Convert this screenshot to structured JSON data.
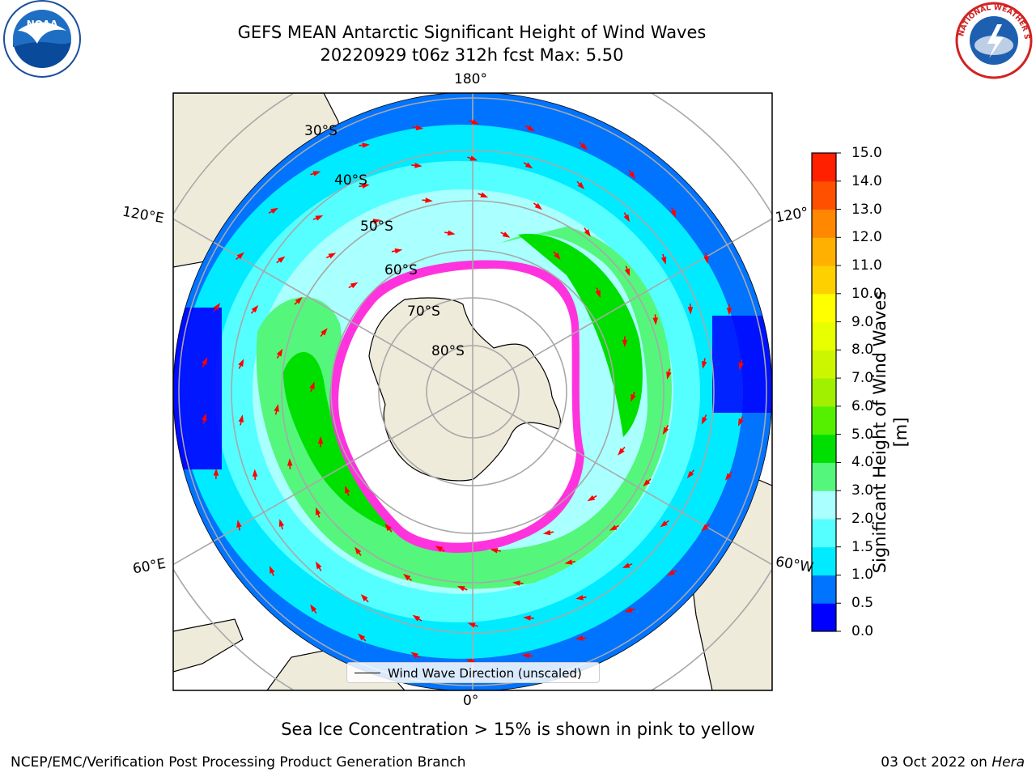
{
  "title": {
    "line1": "GEFS MEAN Antarctic Significant Height of Wind Waves",
    "line2": "20220929 t06z 312h fcst   Max: 5.50"
  },
  "logos": {
    "left": "NOAA",
    "right": "NATIONAL WEATHER SERVICE"
  },
  "map": {
    "projection": "south-polar-stereographic",
    "lat_labels": [
      "30°S",
      "40°S",
      "50°S",
      "60°S",
      "70°S",
      "80°S"
    ],
    "lon_labels": {
      "top": "180°",
      "bottom": "0°",
      "upper_left": "120°E",
      "lower_left": "60°E",
      "upper_right": "120°",
      "lower_right": "60°W"
    },
    "legend": "Wind Wave Direction (unscaled)",
    "arrow_color": "#ff0000",
    "land_color": "#efebdb"
  },
  "colorbar": {
    "label": "Significant Height of Wind Waves [m]",
    "ticks": [
      "0.0",
      "0.5",
      "1.0",
      "1.5",
      "2.0",
      "3.0",
      "4.0",
      "5.0",
      "6.0",
      "7.0",
      "8.0",
      "9.0",
      "10.0",
      "11.0",
      "12.0",
      "13.0",
      "14.0",
      "15.0"
    ],
    "colors": [
      "#0000ff",
      "#0073ff",
      "#00ebff",
      "#55ffff",
      "#aaffff",
      "#55f67c",
      "#00e000",
      "#55f000",
      "#a0f000",
      "#ccf600",
      "#e8ff00",
      "#ffff00",
      "#ffd000",
      "#ffb000",
      "#ff8800",
      "#ff5000",
      "#ff2000"
    ]
  },
  "bottom_note": "Sea Ice Concentration > 15% is shown in pink to yellow",
  "footer": {
    "left": "NCEP/EMC/Verification Post Processing Product Generation Branch",
    "right_date": "03 Oct 2022 on",
    "right_host": "Hera"
  }
}
